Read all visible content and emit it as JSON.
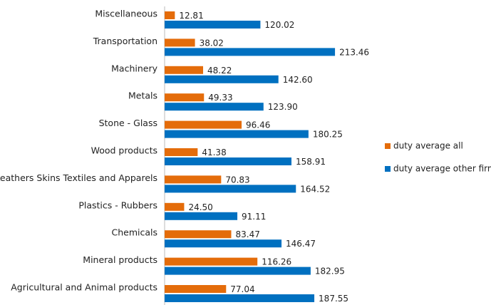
{
  "chart_data": {
    "type": "hbar",
    "categories": [
      "Miscellaneous",
      "Transportation",
      "Machinery",
      "Metals",
      "Stone - Glass",
      "Wood products",
      "Leathers Skins Textiles and Apparels",
      "Plastics - Rubbers",
      "Chemicals",
      "Mineral products",
      "Agricultural and Animal products"
    ],
    "series": [
      {
        "name": "duty average all",
        "color": "#e46c0a",
        "values": [
          12.81,
          38.02,
          48.22,
          49.33,
          96.46,
          41.38,
          70.83,
          24.5,
          83.47,
          116.26,
          77.04
        ],
        "value_labels": [
          "12.81",
          "38.02",
          "48.22",
          "49.33",
          "96.46",
          "41.38",
          "70.83",
          "24.50",
          "83.47",
          "116.26",
          "77.04"
        ]
      },
      {
        "name": "duty average other firms",
        "color": "#0070c0",
        "values": [
          120.02,
          213.46,
          142.6,
          123.9,
          180.25,
          158.91,
          164.52,
          91.11,
          146.47,
          182.95,
          187.55
        ],
        "value_labels": [
          "120.02",
          "213.46",
          "142.60",
          "123.90",
          "180.25",
          "158.91",
          "164.52",
          "91.11",
          "146.47",
          "182.95",
          "187.55"
        ]
      }
    ],
    "legend": "right"
  }
}
